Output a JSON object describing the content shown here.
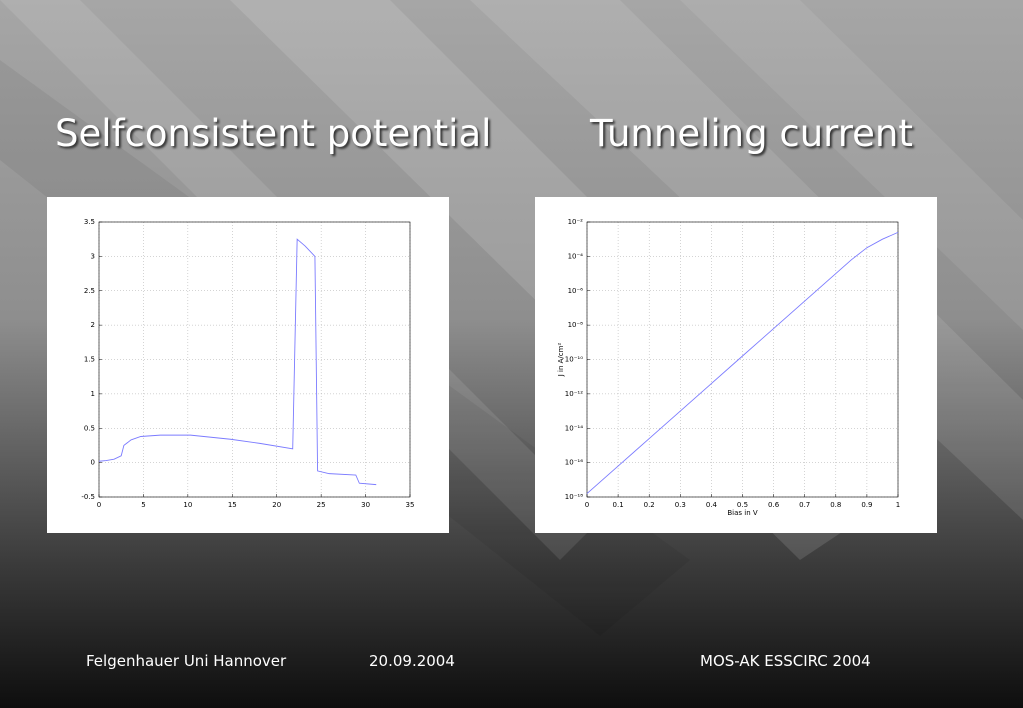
{
  "chart_data": [
    {
      "type": "line",
      "title": "Selfconsistent potential",
      "x": [
        0,
        0.8,
        1.7,
        2.5,
        2.8,
        3.6,
        4.7,
        6.9,
        10.3,
        14.8,
        18.1,
        21.8,
        22.3,
        23.2,
        24.3,
        24.6,
        25.9,
        28.9,
        29.3,
        31.2
      ],
      "values": [
        0.02,
        0.03,
        0.05,
        0.1,
        0.25,
        0.33,
        0.38,
        0.4,
        0.4,
        0.34,
        0.28,
        0.2,
        3.25,
        3.15,
        3.0,
        -0.12,
        -0.16,
        -0.18,
        -0.3,
        -0.32
      ],
      "color": "#7b7bff",
      "xlim": [
        0,
        35
      ],
      "xticks": [
        0,
        5,
        10,
        15,
        20,
        25,
        30,
        35
      ],
      "ylim": [
        -0.5,
        3.5
      ],
      "yticks": [
        -0.5,
        0,
        0.5,
        1,
        1.5,
        2,
        2.5,
        3,
        3.5
      ],
      "grid": true,
      "ylog": false
    },
    {
      "type": "line",
      "title": "Tunneling current",
      "x": [
        0,
        0.1,
        0.2,
        0.3,
        0.4,
        0.5,
        0.6,
        0.7,
        0.8,
        0.85,
        0.9,
        0.95,
        1
      ],
      "values": [
        1.58e-18,
        6.3e-17,
        2.5e-15,
        1e-13,
        4e-12,
        1.6e-10,
        6.3e-09,
        2.5e-07,
        1e-05,
        6.3e-05,
        0.00032,
        0.001,
        0.0025
      ],
      "color": "#7b7bff",
      "xlabel": "Bias in V",
      "ylabel": "J in A/cm²",
      "xlim": [
        0,
        1
      ],
      "xticks": [
        0,
        0.1,
        0.2,
        0.3,
        0.4,
        0.5,
        0.6,
        0.7,
        0.8,
        0.9,
        1
      ],
      "ylim": [
        1e-18,
        0.01
      ],
      "yticks": [
        {
          "value": 1e-18,
          "label": "10⁻¹⁸"
        },
        {
          "value": 1e-16,
          "label": "10⁻¹⁶"
        },
        {
          "value": 1e-14,
          "label": "10⁻¹⁴"
        },
        {
          "value": 1e-12,
          "label": "10⁻¹²"
        },
        {
          "value": 1e-10,
          "label": "10⁻¹⁰"
        },
        {
          "value": 1e-08,
          "label": "10⁻⁸"
        },
        {
          "value": 1e-06,
          "label": "10⁻⁶"
        },
        {
          "value": 0.0001,
          "label": "10⁻⁴"
        },
        {
          "value": 0.01,
          "label": "10⁻²"
        }
      ],
      "grid": true,
      "ylog": true
    }
  ],
  "footer": {
    "author": "Felgenhauer Uni Hannover",
    "date": "20.09.2004",
    "event": "MOS-AK ESSCIRC 2004"
  }
}
